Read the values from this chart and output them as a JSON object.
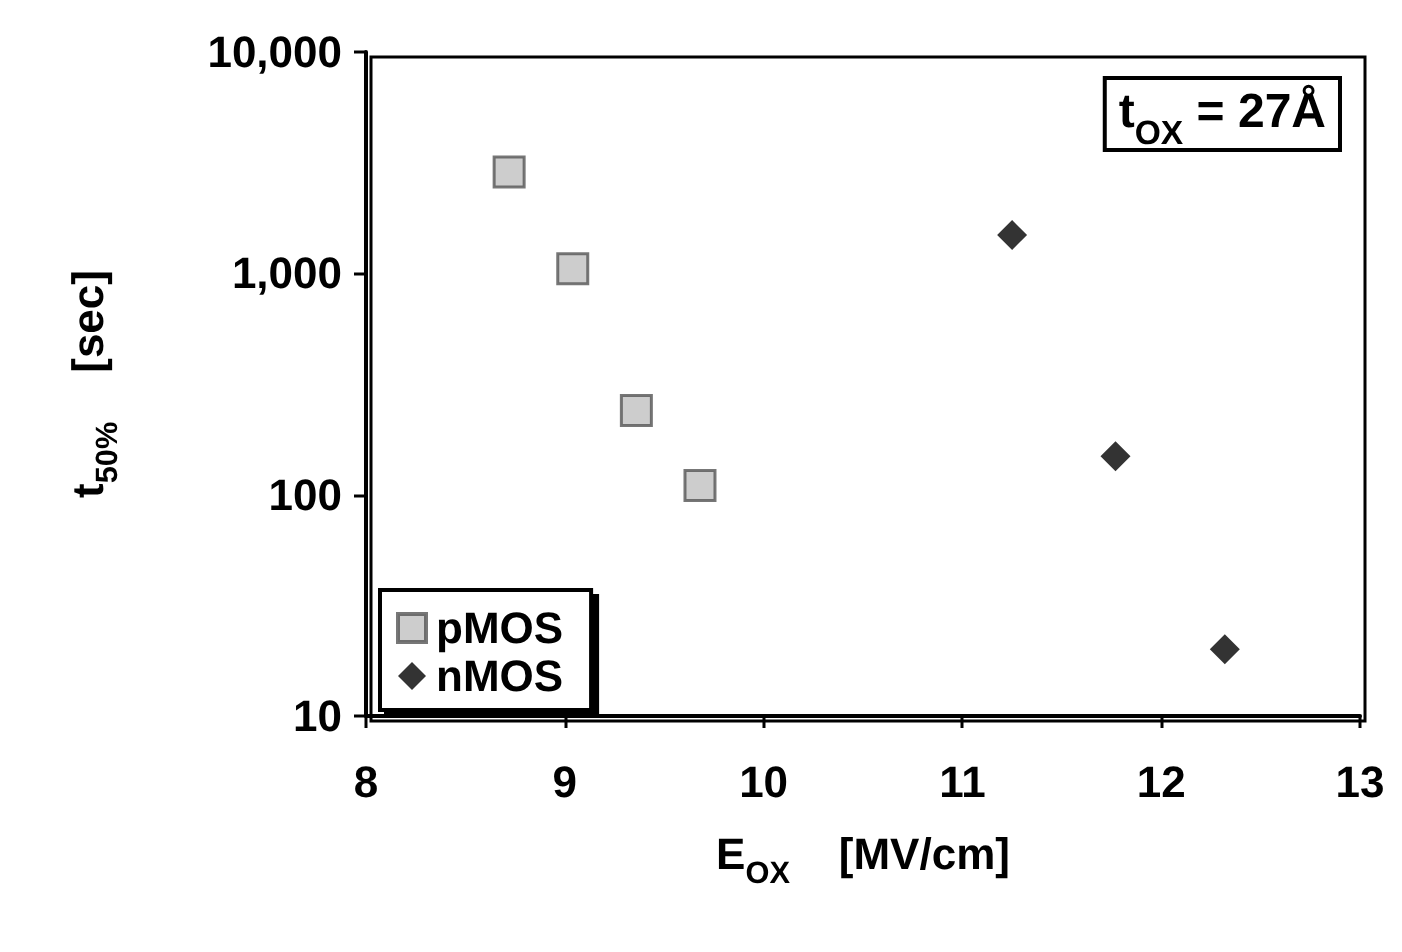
{
  "chart_data": {
    "type": "scatter",
    "xlabel": "E$_{OX}$    [MV/cm]",
    "ylabel": "t$_{50%}$    [sec]",
    "annotations": [
      "t$_{OX}$ = 27Å"
    ],
    "series": [
      {
        "name": "pMOS",
        "color": "#c0c0c0",
        "marker": "square",
        "x": [
          8.72,
          9.04,
          9.36,
          9.68
        ],
        "values": [
          2870,
          1050,
          240,
          110
        ]
      },
      {
        "name": "nMOS",
        "color": "#000000",
        "marker": "diamond",
        "x": [
          11.25,
          11.77,
          12.32
        ],
        "values": [
          1490,
          149,
          20
        ]
      }
    ],
    "xlim": [
      8,
      13
    ],
    "xticks": [
      8,
      9,
      10,
      11,
      12,
      13
    ],
    "ylim": [
      10,
      10000
    ],
    "yticks": [
      {
        "value": 10,
        "label": "10"
      },
      {
        "value": 100,
        "label": "100"
      },
      {
        "value": 1000,
        "label": "1,000"
      },
      {
        "value": 10000,
        "label": "10,000"
      }
    ],
    "log": "y",
    "grid": false,
    "legend": "bottom left"
  }
}
